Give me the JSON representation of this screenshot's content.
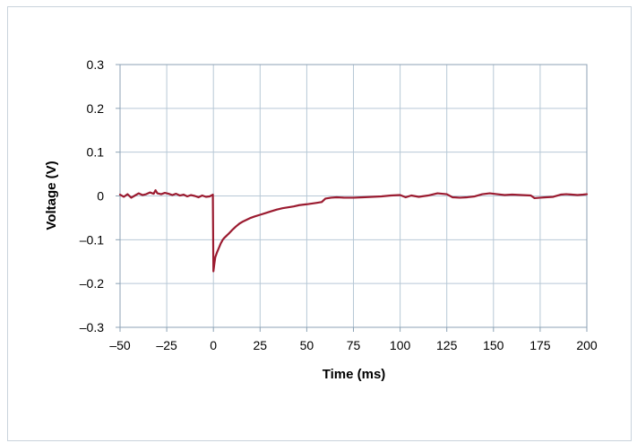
{
  "chart_data": {
    "type": "line",
    "title": "",
    "xlabel": "Time (ms)",
    "ylabel": "Voltage (V)",
    "xlim": [
      -50,
      200
    ],
    "ylim": [
      -0.3,
      0.3
    ],
    "x_ticks": [
      -50,
      -25,
      0,
      25,
      50,
      75,
      100,
      125,
      150,
      175,
      200
    ],
    "x_tick_labels": [
      "–50",
      "–25",
      "0",
      "25",
      "50",
      "75",
      "100",
      "125",
      "150",
      "175",
      "200"
    ],
    "y_ticks": [
      0.3,
      0.2,
      0.1,
      0,
      -0.1,
      -0.2,
      -0.3
    ],
    "y_tick_labels": [
      "0.3",
      "0.2",
      "0.1",
      "0",
      "–0.1",
      "–0.2",
      "–0.3"
    ],
    "grid": true,
    "legend": "none",
    "series": [
      {
        "color": "#9b1b30",
        "points": [
          [
            -50,
            0.003
          ],
          [
            -48,
            -0.002
          ],
          [
            -46,
            0.004
          ],
          [
            -44,
            -0.004
          ],
          [
            -42,
            0.001
          ],
          [
            -40,
            0.006
          ],
          [
            -38,
            0.002
          ],
          [
            -36,
            0.004
          ],
          [
            -34,
            0.008
          ],
          [
            -32,
            0.005
          ],
          [
            -31,
            0.013
          ],
          [
            -30,
            0.006
          ],
          [
            -28,
            0.004
          ],
          [
            -26,
            0.007
          ],
          [
            -24,
            0.005
          ],
          [
            -22,
            0.002
          ],
          [
            -20,
            0.005
          ],
          [
            -18,
            0.001
          ],
          [
            -16,
            0.003
          ],
          [
            -14,
            -0.001
          ],
          [
            -12,
            0.002
          ],
          [
            -10,
            0.0
          ],
          [
            -8,
            -0.003
          ],
          [
            -6,
            0.001
          ],
          [
            -4,
            -0.002
          ],
          [
            -2,
            -0.001
          ],
          [
            -0.3,
            0.003
          ],
          [
            0,
            -0.172
          ],
          [
            0.5,
            -0.155
          ],
          [
            1,
            -0.14
          ],
          [
            2,
            -0.128
          ],
          [
            3,
            -0.118
          ],
          [
            4,
            -0.108
          ],
          [
            5,
            -0.1
          ],
          [
            6,
            -0.095
          ],
          [
            8,
            -0.087
          ],
          [
            10,
            -0.078
          ],
          [
            12,
            -0.07
          ],
          [
            14,
            -0.063
          ],
          [
            16,
            -0.058
          ],
          [
            18,
            -0.054
          ],
          [
            20,
            -0.05
          ],
          [
            22,
            -0.047
          ],
          [
            25,
            -0.043
          ],
          [
            28,
            -0.039
          ],
          [
            31,
            -0.035
          ],
          [
            34,
            -0.031
          ],
          [
            37,
            -0.028
          ],
          [
            40,
            -0.026
          ],
          [
            43,
            -0.024
          ],
          [
            46,
            -0.021
          ],
          [
            50,
            -0.019
          ],
          [
            55,
            -0.016
          ],
          [
            58,
            -0.014
          ],
          [
            60,
            -0.006
          ],
          [
            63,
            -0.004
          ],
          [
            66,
            -0.003
          ],
          [
            70,
            -0.004
          ],
          [
            75,
            -0.004
          ],
          [
            80,
            -0.003
          ],
          [
            85,
            -0.002
          ],
          [
            90,
            -0.001
          ],
          [
            95,
            0.001
          ],
          [
            100,
            0.002
          ],
          [
            103,
            -0.003
          ],
          [
            106,
            0.001
          ],
          [
            110,
            -0.002
          ],
          [
            115,
            0.001
          ],
          [
            120,
            0.006
          ],
          [
            125,
            0.004
          ],
          [
            128,
            -0.003
          ],
          [
            132,
            -0.004
          ],
          [
            136,
            -0.003
          ],
          [
            140,
            -0.001
          ],
          [
            144,
            0.004
          ],
          [
            148,
            0.006
          ],
          [
            152,
            0.004
          ],
          [
            156,
            0.002
          ],
          [
            160,
            0.003
          ],
          [
            165,
            0.002
          ],
          [
            170,
            0.001
          ],
          [
            172,
            -0.005
          ],
          [
            175,
            -0.004
          ],
          [
            178,
            -0.003
          ],
          [
            182,
            -0.002
          ],
          [
            186,
            0.003
          ],
          [
            189,
            0.004
          ],
          [
            192,
            0.003
          ],
          [
            195,
            0.002
          ],
          [
            198,
            0.003
          ],
          [
            200,
            0.004
          ]
        ]
      }
    ]
  }
}
